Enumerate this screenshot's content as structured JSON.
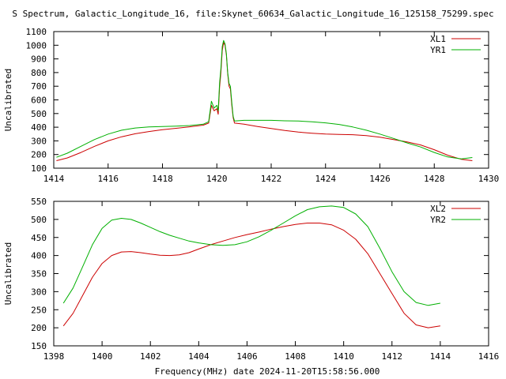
{
  "title": "S Spectrum, Galactic_Longitude_16, file:Skynet_60634_Galactic_Longitude_16_125158_75299.spec",
  "xlabel": "Frequency(MHz) date 2024-11-20T15:58:56.000",
  "colors": {
    "red": "#cc0000",
    "green": "#00b000"
  },
  "chart_data": [
    {
      "type": "line",
      "ylabel": "Uncalibrated",
      "xlim": [
        1414,
        1430
      ],
      "ylim": [
        100,
        1100
      ],
      "x_ticks": [
        1414,
        1416,
        1418,
        1420,
        1422,
        1424,
        1426,
        1428,
        1430
      ],
      "y_ticks": [
        100,
        200,
        300,
        400,
        500,
        600,
        700,
        800,
        900,
        1000,
        1100
      ],
      "legend_position": "top-right",
      "grid": false,
      "series": [
        {
          "name": "XL1",
          "color": "#cc0000",
          "x": [
            1414.1,
            1414.5,
            1415.0,
            1415.5,
            1416.0,
            1416.5,
            1417.0,
            1417.5,
            1418.0,
            1418.5,
            1419.0,
            1419.5,
            1419.7,
            1419.8,
            1419.9,
            1420.0,
            1420.05,
            1420.1,
            1420.15,
            1420.2,
            1420.25,
            1420.3,
            1420.35,
            1420.4,
            1420.45,
            1420.5,
            1420.55,
            1420.6,
            1420.65,
            1421.0,
            1421.5,
            1422.0,
            1422.5,
            1423.0,
            1423.5,
            1424.0,
            1424.5,
            1425.0,
            1425.5,
            1426.0,
            1426.5,
            1427.0,
            1427.5,
            1428.0,
            1428.5,
            1429.0,
            1429.4
          ],
          "values": [
            155,
            175,
            215,
            260,
            300,
            330,
            352,
            368,
            382,
            392,
            403,
            415,
            430,
            560,
            520,
            535,
            495,
            690,
            800,
            960,
            1020,
            1000,
            930,
            790,
            700,
            680,
            560,
            470,
            430,
            422,
            405,
            390,
            376,
            364,
            356,
            350,
            347,
            345,
            338,
            327,
            310,
            292,
            270,
            235,
            195,
            165,
            155
          ]
        },
        {
          "name": "YR1",
          "color": "#00b000",
          "x": [
            1414.1,
            1414.5,
            1415.0,
            1415.5,
            1416.0,
            1416.5,
            1417.0,
            1417.5,
            1418.0,
            1418.5,
            1419.0,
            1419.5,
            1419.7,
            1419.8,
            1419.9,
            1420.0,
            1420.05,
            1420.1,
            1420.15,
            1420.2,
            1420.25,
            1420.3,
            1420.35,
            1420.4,
            1420.45,
            1420.5,
            1420.55,
            1420.6,
            1420.65,
            1421.0,
            1421.5,
            1422.0,
            1422.5,
            1423.0,
            1423.5,
            1424.0,
            1424.5,
            1425.0,
            1425.5,
            1426.0,
            1426.5,
            1427.0,
            1427.5,
            1428.0,
            1428.5,
            1429.0,
            1429.4
          ],
          "values": [
            180,
            210,
            260,
            310,
            350,
            378,
            394,
            402,
            405,
            408,
            412,
            422,
            440,
            590,
            540,
            560,
            520,
            720,
            830,
            990,
            1035,
            1010,
            940,
            800,
            720,
            700,
            580,
            480,
            445,
            450,
            450,
            450,
            447,
            445,
            440,
            432,
            420,
            402,
            378,
            350,
            318,
            285,
            255,
            215,
            182,
            168,
            178
          ]
        }
      ]
    },
    {
      "type": "line",
      "ylabel": "Uncalibrated",
      "xlim": [
        1398,
        1416
      ],
      "ylim": [
        150,
        550
      ],
      "x_ticks": [
        1398,
        1400,
        1402,
        1404,
        1406,
        1408,
        1410,
        1412,
        1414,
        1416
      ],
      "y_ticks": [
        150,
        200,
        250,
        300,
        350,
        400,
        450,
        500,
        550
      ],
      "legend_position": "top-right",
      "grid": false,
      "series": [
        {
          "name": "XL2",
          "color": "#cc0000",
          "x": [
            1398.4,
            1398.8,
            1399.2,
            1399.6,
            1400.0,
            1400.4,
            1400.8,
            1401.2,
            1401.6,
            1402.0,
            1402.4,
            1402.8,
            1403.2,
            1403.6,
            1404.0,
            1404.5,
            1405.0,
            1405.5,
            1406.0,
            1406.5,
            1407.0,
            1407.5,
            1408.0,
            1408.5,
            1409.0,
            1409.5,
            1410.0,
            1410.5,
            1411.0,
            1411.5,
            1412.0,
            1412.5,
            1413.0,
            1413.5,
            1414.0
          ],
          "values": [
            205,
            240,
            290,
            340,
            378,
            400,
            410,
            411,
            408,
            404,
            401,
            400,
            402,
            408,
            418,
            430,
            440,
            450,
            458,
            465,
            473,
            480,
            486,
            490,
            490,
            485,
            470,
            445,
            405,
            350,
            295,
            240,
            208,
            200,
            205
          ]
        },
        {
          "name": "YR2",
          "color": "#00b000",
          "x": [
            1398.4,
            1398.8,
            1399.2,
            1399.6,
            1400.0,
            1400.4,
            1400.8,
            1401.2,
            1401.6,
            1402.0,
            1402.4,
            1402.8,
            1403.2,
            1403.6,
            1404.0,
            1404.5,
            1405.0,
            1405.5,
            1406.0,
            1406.5,
            1407.0,
            1407.5,
            1408.0,
            1408.5,
            1409.0,
            1409.5,
            1410.0,
            1410.5,
            1411.0,
            1411.5,
            1412.0,
            1412.5,
            1413.0,
            1413.5,
            1414.0
          ],
          "values": [
            268,
            310,
            370,
            430,
            475,
            498,
            503,
            500,
            490,
            478,
            466,
            456,
            448,
            440,
            435,
            430,
            428,
            430,
            438,
            452,
            470,
            490,
            510,
            527,
            535,
            537,
            533,
            515,
            480,
            420,
            355,
            300,
            270,
            262,
            268
          ]
        }
      ]
    }
  ]
}
